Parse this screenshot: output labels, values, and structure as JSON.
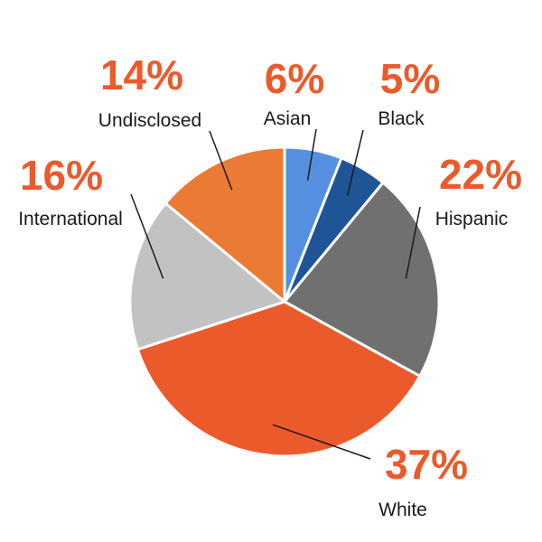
{
  "chart_data": {
    "type": "pie",
    "start_angle_deg": 0,
    "direction": "clockwise",
    "slices": [
      {
        "label": "Asian",
        "value": 6,
        "value_label": "6%",
        "color": "#5590E0"
      },
      {
        "label": "Black",
        "value": 5,
        "value_label": "5%",
        "color": "#1F5496"
      },
      {
        "label": "Hispanic",
        "value": 22,
        "value_label": "22%",
        "color": "#707070"
      },
      {
        "label": "White",
        "value": 37,
        "value_label": "37%",
        "color": "#EB5A2B"
      },
      {
        "label": "International",
        "value": 16,
        "value_label": "16%",
        "color": "#C2C2C2"
      },
      {
        "label": "Undisclosed",
        "value": 14,
        "value_label": "14%",
        "color": "#EB7A35"
      }
    ],
    "percent_label_color": "#EB5A2B",
    "legend": "none"
  }
}
